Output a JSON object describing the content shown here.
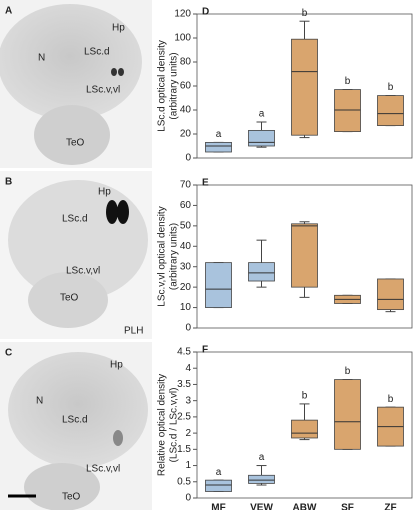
{
  "images": [
    {
      "panel": "A",
      "labels": [
        "Hp",
        "N",
        "LSc.d",
        "LSc.v,vl",
        "TeO"
      ]
    },
    {
      "panel": "B",
      "labels": [
        "Hp",
        "LSc.d",
        "LSc.v,vl",
        "TeO",
        "PLH"
      ]
    },
    {
      "panel": "C",
      "labels": [
        "Hp",
        "N",
        "LSc.d",
        "LSc.v,vl",
        "TeO"
      ]
    }
  ],
  "chart_data": [
    {
      "type": "box",
      "panel": "D",
      "ylabel": [
        "LSc.d optical density",
        "(arbitrary units)"
      ],
      "ylim": [
        0,
        120
      ],
      "yticks": [
        0,
        20,
        40,
        60,
        80,
        100,
        120
      ],
      "colors": [
        "#a9c3dd",
        "#a9c3dd",
        "#d9a56e",
        "#d9a56e",
        "#d9a56e"
      ],
      "boxes": [
        {
          "min": 5,
          "q1": 5,
          "median": 10,
          "q3": 13,
          "max": 13
        },
        {
          "min": 9,
          "q1": 10,
          "median": 13,
          "q3": 23,
          "max": 30
        },
        {
          "min": 17,
          "q1": 19,
          "median": 72,
          "q3": 99,
          "max": 114
        },
        {
          "min": 22,
          "q1": 22,
          "median": 40,
          "q3": 57,
          "max": 57
        },
        {
          "min": 27,
          "q1": 27,
          "median": 37,
          "q3": 52,
          "max": 52
        }
      ],
      "letters": [
        "a",
        "a",
        "b",
        "b",
        "b"
      ]
    },
    {
      "type": "box",
      "panel": "E",
      "ylabel": [
        "LSc.v,vl optical density",
        "(arbitrary units)"
      ],
      "ylim": [
        0,
        70
      ],
      "yticks": [
        0,
        10,
        20,
        30,
        40,
        50,
        60,
        70
      ],
      "colors": [
        "#a9c3dd",
        "#a9c3dd",
        "#d9a56e",
        "#d9a56e",
        "#d9a56e"
      ],
      "boxes": [
        {
          "min": 10,
          "q1": 10,
          "median": 19,
          "q3": 32,
          "max": 32
        },
        {
          "min": 20,
          "q1": 23,
          "median": 27,
          "q3": 32,
          "max": 43
        },
        {
          "min": 15,
          "q1": 20,
          "median": 50,
          "q3": 51,
          "max": 52
        },
        {
          "min": 12,
          "q1": 12,
          "median": 14,
          "q3": 16,
          "max": 16
        },
        {
          "min": 8,
          "q1": 9,
          "median": 14,
          "q3": 24,
          "max": 24
        }
      ]
    },
    {
      "type": "box",
      "panel": "F",
      "ylabel": [
        "Relative optical density",
        "(LSc.d / LSc.v,vl)"
      ],
      "ylim": [
        0,
        4.5
      ],
      "yticks": [
        0,
        0.5,
        1,
        1.5,
        2,
        2.5,
        3,
        3.5,
        4,
        4.5
      ],
      "categories": [
        "MF",
        "VEW",
        "ABW",
        "SF",
        "ZF"
      ],
      "colors": [
        "#a9c3dd",
        "#a9c3dd",
        "#d9a56e",
        "#d9a56e",
        "#d9a56e"
      ],
      "boxes": [
        {
          "min": 0.2,
          "q1": 0.2,
          "median": 0.4,
          "q3": 0.55,
          "max": 0.55
        },
        {
          "min": 0.4,
          "q1": 0.45,
          "median": 0.55,
          "q3": 0.7,
          "max": 1.0
        },
        {
          "min": 1.8,
          "q1": 1.85,
          "median": 2.0,
          "q3": 2.4,
          "max": 2.9
        },
        {
          "min": 1.5,
          "q1": 1.5,
          "median": 2.35,
          "q3": 3.65,
          "max": 3.65
        },
        {
          "min": 1.6,
          "q1": 1.6,
          "median": 2.2,
          "q3": 2.8,
          "max": 2.8
        }
      ],
      "letters": [
        "a",
        "a",
        "b",
        "b",
        "b"
      ]
    }
  ]
}
